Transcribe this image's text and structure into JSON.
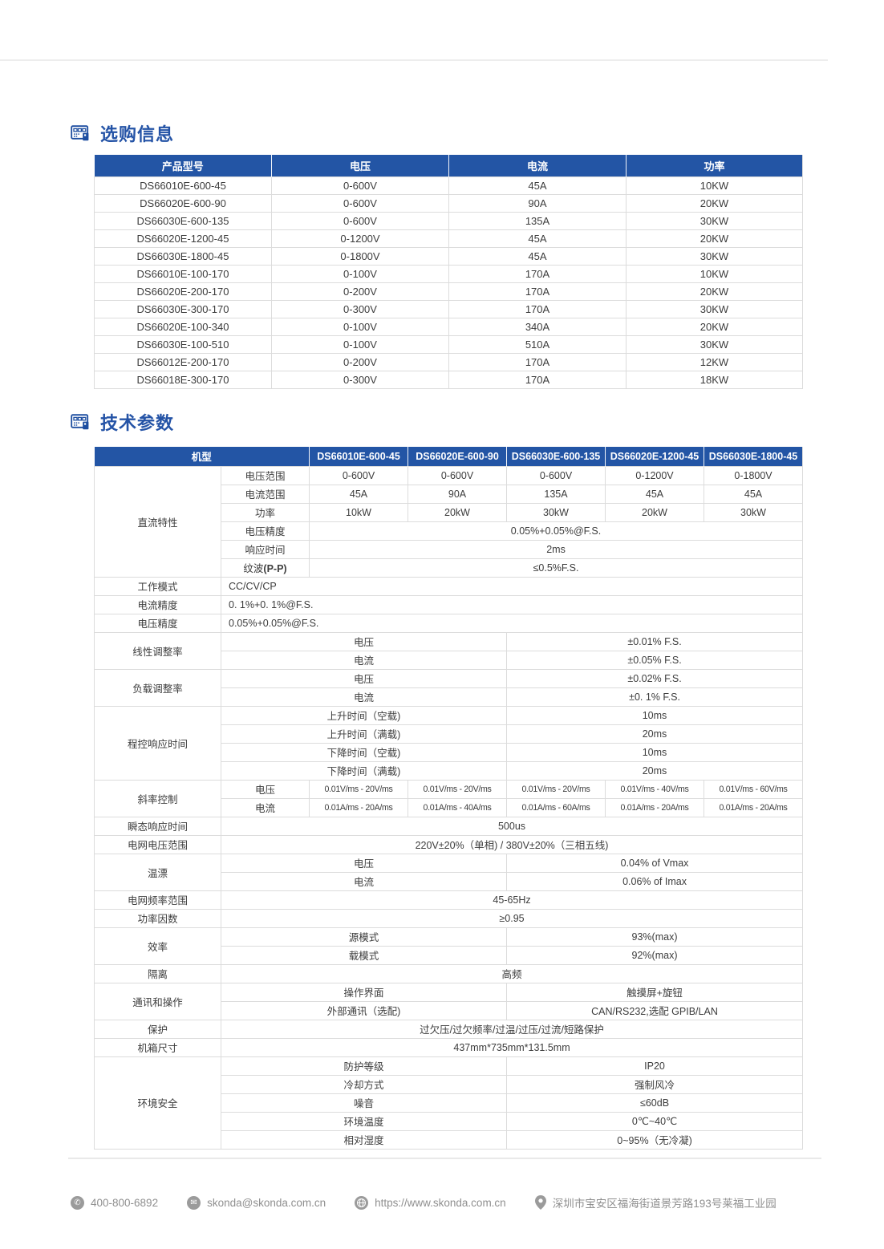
{
  "sections": {
    "ordering_title": "选购信息",
    "specs_title": "技术参数"
  },
  "colors": {
    "accent_blue": "#2355a5",
    "title_blue": "#2453a6",
    "body_text": "#3c3c3c",
    "table_border": "#dcdcdc",
    "footer_gray": "#8f8f8f"
  },
  "order_table": {
    "headers": [
      "产品型号",
      "电压",
      "电流",
      "功率"
    ],
    "rows": [
      [
        "DS66010E-600-45",
        "0-600V",
        "45A",
        "10KW"
      ],
      [
        "DS66020E-600-90",
        "0-600V",
        "90A",
        "20KW"
      ],
      [
        "DS66030E-600-135",
        "0-600V",
        "135A",
        "30KW"
      ],
      [
        "DS66020E-1200-45",
        "0-1200V",
        "45A",
        "20KW"
      ],
      [
        "DS66030E-1800-45",
        "0-1800V",
        "45A",
        "30KW"
      ],
      [
        "DS66010E-100-170",
        "0-100V",
        "170A",
        "10KW"
      ],
      [
        "DS66020E-200-170",
        "0-200V",
        "170A",
        "20KW"
      ],
      [
        "DS66030E-300-170",
        "0-300V",
        "170A",
        "30KW"
      ],
      [
        "DS66020E-100-340",
        "0-100V",
        "340A",
        "20KW"
      ],
      [
        "DS66030E-100-510",
        "0-100V",
        "510A",
        "30KW"
      ],
      [
        "DS66012E-200-170",
        "0-200V",
        "170A",
        "12KW"
      ],
      [
        "DS66018E-300-170",
        "0-300V",
        "170A",
        "18KW"
      ]
    ]
  },
  "spec_table": {
    "model_header": "机型",
    "models": [
      "DS66010E-600-45",
      "DS66020E-600-90",
      "DS66030E-600-135",
      "DS66020E-1200-45",
      "DS66030E-1800-45"
    ],
    "rows": [
      {
        "cells": [
          {
            "t": "直流特性",
            "rs": 6
          },
          {
            "t": "电压范围"
          },
          {
            "t": "0-600V"
          },
          {
            "t": "0-600V"
          },
          {
            "t": "0-600V"
          },
          {
            "t": "0-1200V"
          },
          {
            "t": "0-1800V"
          }
        ]
      },
      {
        "cells": [
          {
            "t": "电流范围"
          },
          {
            "t": "45A"
          },
          {
            "t": "90A"
          },
          {
            "t": "135A"
          },
          {
            "t": "45A"
          },
          {
            "t": "45A"
          }
        ]
      },
      {
        "cells": [
          {
            "t": "功率"
          },
          {
            "t": "10kW"
          },
          {
            "t": "20kW"
          },
          {
            "t": "30kW"
          },
          {
            "t": "20kW"
          },
          {
            "t": "30kW"
          }
        ]
      },
      {
        "cells": [
          {
            "t": "电压精度"
          },
          {
            "t": "0.05%+0.05%@F.S.",
            "cs": 5
          }
        ]
      },
      {
        "cells": [
          {
            "t": "响应时间"
          },
          {
            "t": "2ms",
            "cs": 5
          }
        ]
      },
      {
        "cells": [
          {
            "t": "纹波(P-P)",
            "cls": "blabel"
          },
          {
            "t": "≤0.5%F.S.",
            "cs": 5
          }
        ]
      },
      {
        "cells": [
          {
            "t": "工作模式"
          },
          {
            "t": "CC/CV/CP",
            "cs": 6,
            "cls": "left"
          }
        ]
      },
      {
        "cells": [
          {
            "t": "电流精度"
          },
          {
            "t": "0. 1%+0. 1%@F.S.",
            "cs": 6,
            "cls": "left"
          }
        ]
      },
      {
        "cells": [
          {
            "t": "电压精度"
          },
          {
            "t": "0.05%+0.05%@F.S.",
            "cs": 6,
            "cls": "left"
          }
        ]
      },
      {
        "cells": [
          {
            "t": "线性调整率",
            "rs": 2
          },
          {
            "t": "电压",
            "cs": 3
          },
          {
            "t": "±0.01% F.S.",
            "cs": 3
          }
        ]
      },
      {
        "cells": [
          {
            "t": "电流",
            "cs": 3
          },
          {
            "t": "±0.05% F.S.",
            "cs": 3
          }
        ]
      },
      {
        "cells": [
          {
            "t": "负载调整率",
            "rs": 2
          },
          {
            "t": "电压",
            "cs": 3
          },
          {
            "t": "±0.02% F.S.",
            "cs": 3
          }
        ]
      },
      {
        "cells": [
          {
            "t": "电流",
            "cs": 3
          },
          {
            "t": "±0. 1% F.S.",
            "cs": 3
          }
        ]
      },
      {
        "cells": [
          {
            "t": "程控响应时间",
            "rs": 4
          },
          {
            "t": "上升时间（空载)",
            "cs": 3
          },
          {
            "t": "10ms",
            "cs": 3
          }
        ]
      },
      {
        "cells": [
          {
            "t": "上升时间（满载)",
            "cs": 3
          },
          {
            "t": "20ms",
            "cs": 3
          }
        ]
      },
      {
        "cells": [
          {
            "t": "下降时间（空载)",
            "cs": 3
          },
          {
            "t": "10ms",
            "cs": 3
          }
        ]
      },
      {
        "cells": [
          {
            "t": "下降时间（满载)",
            "cs": 3
          },
          {
            "t": "20ms",
            "cs": 3
          }
        ]
      },
      {
        "cells": [
          {
            "t": "斜率控制",
            "rs": 2
          },
          {
            "t": "电压"
          },
          {
            "t": "0.01V/ms - 20V/ms",
            "cls": "small"
          },
          {
            "t": "0.01V/ms - 20V/ms",
            "cls": "small"
          },
          {
            "t": "0.01V/ms - 20V/ms",
            "cls": "small"
          },
          {
            "t": "0.01V/ms - 40V/ms",
            "cls": "small"
          },
          {
            "t": "0.01V/ms - 60V/ms",
            "cls": "small"
          }
        ]
      },
      {
        "cells": [
          {
            "t": "电流"
          },
          {
            "t": "0.01A/ms - 20A/ms",
            "cls": "small"
          },
          {
            "t": "0.01A/ms - 40A/ms",
            "cls": "small"
          },
          {
            "t": "0.01A/ms - 60A/ms",
            "cls": "small"
          },
          {
            "t": "0.01A/ms - 20A/ms",
            "cls": "small"
          },
          {
            "t": "0.01A/ms - 20A/ms",
            "cls": "small"
          }
        ]
      },
      {
        "cells": [
          {
            "t": "瞬态响应时间"
          },
          {
            "t": "500us",
            "cs": 6
          }
        ]
      },
      {
        "cells": [
          {
            "t": "电网电压范围"
          },
          {
            "t": "220V±20%（单相) / 380V±20%（三相五线)",
            "cs": 6
          }
        ]
      },
      {
        "cells": [
          {
            "t": "温漂",
            "rs": 2
          },
          {
            "t": "电压",
            "cs": 3
          },
          {
            "t": "0.04% of Vmax",
            "cs": 3
          }
        ]
      },
      {
        "cells": [
          {
            "t": "电流",
            "cs": 3
          },
          {
            "t": "0.06% of Imax",
            "cs": 3
          }
        ]
      },
      {
        "cells": [
          {
            "t": "电网频率范围"
          },
          {
            "t": "45-65Hz",
            "cs": 6
          }
        ]
      },
      {
        "cells": [
          {
            "t": "功率因数"
          },
          {
            "t": "≥0.95",
            "cs": 6
          }
        ]
      },
      {
        "cells": [
          {
            "t": "效率",
            "rs": 2
          },
          {
            "t": "源模式",
            "cs": 3
          },
          {
            "t": "93%(max)",
            "cs": 3
          }
        ]
      },
      {
        "cells": [
          {
            "t": "载模式",
            "cs": 3
          },
          {
            "t": "92%(max)",
            "cs": 3
          }
        ]
      },
      {
        "cells": [
          {
            "t": "隔离"
          },
          {
            "t": "高频",
            "cs": 6
          }
        ]
      },
      {
        "cells": [
          {
            "t": "通讯和操作",
            "rs": 2
          },
          {
            "t": "操作界面",
            "cs": 3
          },
          {
            "t": "触摸屏+旋钮",
            "cs": 3
          }
        ]
      },
      {
        "cells": [
          {
            "t": "外部通讯（选配)",
            "cs": 3
          },
          {
            "t": "CAN/RS232,选配 GPIB/LAN",
            "cs": 3
          }
        ]
      },
      {
        "cells": [
          {
            "t": "保护"
          },
          {
            "t": "过欠压/过欠频率/过温/过压/过流/短路保护",
            "cs": 6
          }
        ]
      },
      {
        "cells": [
          {
            "t": "机箱尺寸"
          },
          {
            "t": "437mm*735mm*131.5mm",
            "cs": 6
          }
        ]
      },
      {
        "cells": [
          {
            "t": "环境安全",
            "rs": 5
          },
          {
            "t": "防护等级",
            "cs": 3
          },
          {
            "t": "IP20",
            "cs": 3
          }
        ]
      },
      {
        "cells": [
          {
            "t": "冷却方式",
            "cs": 3
          },
          {
            "t": "强制风冷",
            "cs": 3
          }
        ]
      },
      {
        "cells": [
          {
            "t": "噪音",
            "cs": 3
          },
          {
            "t": "≤60dB",
            "cs": 3
          }
        ]
      },
      {
        "cells": [
          {
            "t": "环境温度",
            "cs": 3
          },
          {
            "t": "0℃~40℃",
            "cs": 3
          }
        ]
      },
      {
        "cells": [
          {
            "t": "相对湿度",
            "cs": 3
          },
          {
            "t": "0~95%（无冷凝)",
            "cs": 3
          }
        ]
      }
    ]
  },
  "footer": {
    "phone": "400-800-6892",
    "email": "skonda@skonda.com.cn",
    "website": "https://www.skonda.com.cn",
    "address": "深圳市宝安区福海街道景芳路193号莱福工业园"
  },
  "icons": {
    "section": "device-panel-icon",
    "phone_glyph": "✆",
    "mail_glyph": "✉",
    "globe": "globe-icon",
    "pin": "location-pin-icon"
  }
}
